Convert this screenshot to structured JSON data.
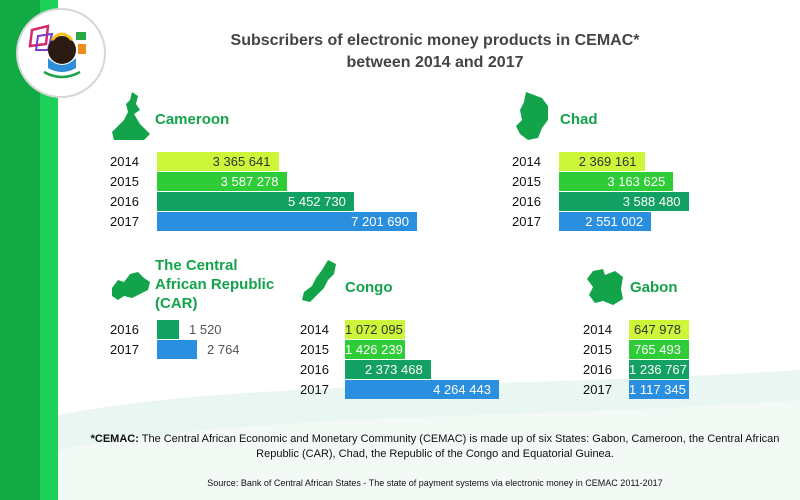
{
  "title_line1": "Subscribers of electronic money products in CEMAC*",
  "title_line2": "between 2014 and 2017",
  "footnote": {
    "label": "*CEMAC:",
    "text": " The Central African Economic and Monetary Community (CEMAC) is made up of six States: Gabon, Cameroon, the Central African Republic (CAR), Chad, the Republic of the Congo and Equatorial Guinea."
  },
  "source": "Source: Bank of Central African States - The state of payment systems via electronic money in CEMAC 2011-2017",
  "colors": {
    "2014": "#cdf53a",
    "2015": "#2ecc36",
    "2016": "#13a063",
    "2017": "#2a8fde",
    "country_name": "#13a34a",
    "sidebar": "#11aa45"
  },
  "chart_data": [
    {
      "type": "bar",
      "country": "Cameroon",
      "categories": [
        "2014",
        "2015",
        "2016",
        "2017"
      ],
      "values": [
        3365641,
        3587278,
        5452730,
        7201690
      ],
      "labels": [
        "3 365 641",
        "3 587 278",
        "5 452 730",
        "7 201 690"
      ]
    },
    {
      "type": "bar",
      "country": "Chad",
      "categories": [
        "2014",
        "2015",
        "2016",
        "2017"
      ],
      "values": [
        2369161,
        3163625,
        3588480,
        2551002
      ],
      "labels": [
        "2 369 161",
        "3 163 625",
        "3 588 480",
        "2 551 002"
      ]
    },
    {
      "type": "bar",
      "country_lines": [
        "The Central",
        "African Republic",
        "(CAR)"
      ],
      "categories": [
        "2016",
        "2017"
      ],
      "values": [
        1520,
        2764
      ],
      "labels": [
        "1 520",
        "2 764"
      ]
    },
    {
      "type": "bar",
      "country": "Congo",
      "categories": [
        "2014",
        "2015",
        "2016",
        "2017"
      ],
      "values": [
        1072095,
        1426239,
        2373468,
        4264443
      ],
      "labels": [
        "1 072 095",
        "1 426 239",
        "2 373 468",
        "4 264 443"
      ]
    },
    {
      "type": "bar",
      "country": "Gabon",
      "categories": [
        "2014",
        "2015",
        "2016",
        "2017"
      ],
      "values": [
        647978,
        765493,
        1236767,
        1117345
      ],
      "labels": [
        "647 978",
        "765 493",
        "1 236 767",
        "1 117 345"
      ]
    }
  ]
}
